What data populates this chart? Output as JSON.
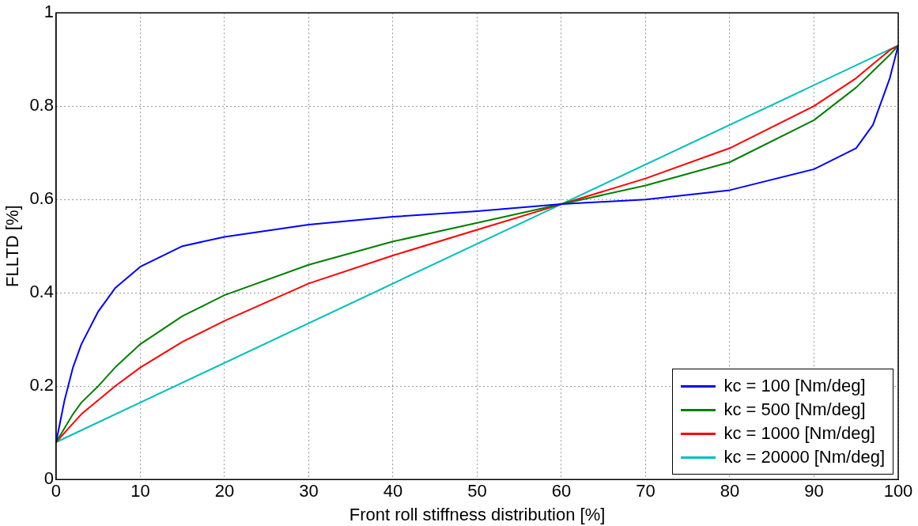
{
  "chart_data": {
    "type": "line",
    "xlabel": "Front roll stiffness distribution [%]",
    "ylabel": "FLLTD [%]",
    "x": [
      0,
      1,
      2,
      3,
      5,
      7,
      10,
      15,
      20,
      30,
      40,
      50,
      60,
      70,
      80,
      90,
      95,
      97,
      99,
      100
    ],
    "xlim": [
      0,
      100
    ],
    "xticks": [
      0,
      10,
      20,
      30,
      40,
      50,
      60,
      70,
      80,
      90,
      100
    ],
    "ylim": [
      0,
      1
    ],
    "yticks": [
      0,
      0.2,
      0.4,
      0.6,
      0.8,
      1
    ],
    "grid": true,
    "legend": "bottom right",
    "marker": "none",
    "line_style": "solid",
    "series": [
      {
        "name": "kc = 100 [Nm/deg]",
        "color": "#0000ff",
        "values": [
          0.08,
          0.17,
          0.24,
          0.29,
          0.36,
          0.41,
          0.456,
          0.5,
          0.52,
          0.546,
          0.563,
          0.575,
          0.59,
          0.6,
          0.62,
          0.665,
          0.71,
          0.76,
          0.86,
          0.93
        ]
      },
      {
        "name": "kc = 500 [Nm/deg]",
        "color": "#008000",
        "values": [
          0.08,
          0.11,
          0.14,
          0.165,
          0.2,
          0.24,
          0.29,
          0.35,
          0.395,
          0.46,
          0.51,
          0.55,
          0.59,
          0.63,
          0.68,
          0.77,
          0.84,
          0.875,
          0.91,
          0.93
        ]
      },
      {
        "name": "kc = 1000 [Nm/deg]",
        "color": "#ff0000",
        "values": [
          0.08,
          0.1,
          0.12,
          0.14,
          0.17,
          0.2,
          0.24,
          0.295,
          0.34,
          0.42,
          0.48,
          0.535,
          0.59,
          0.645,
          0.71,
          0.8,
          0.86,
          0.89,
          0.92,
          0.93
        ]
      },
      {
        "name": "kc = 20000 [Nm/deg]",
        "color": "#00bfbf",
        "x": [
          0,
          60,
          100
        ],
        "values": [
          0.08,
          0.59,
          0.93
        ]
      }
    ]
  }
}
